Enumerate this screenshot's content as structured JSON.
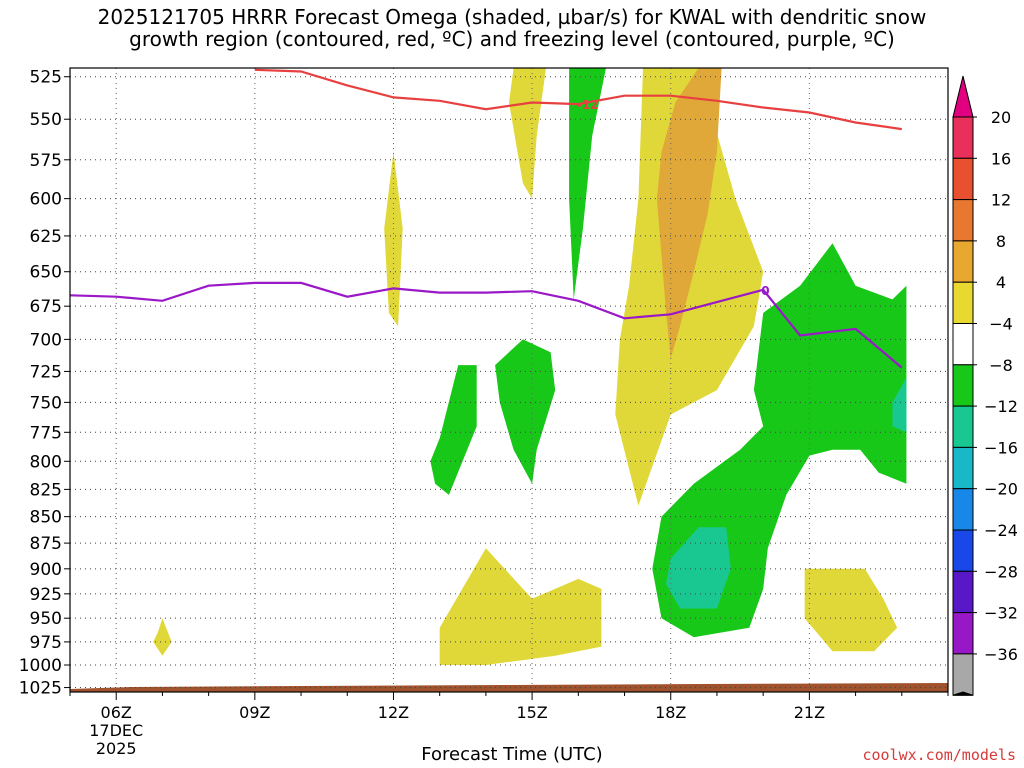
{
  "title_line1": "2025121705 HRRR Forecast Omega (shaded, µbar/s) for KWAL with dendritic snow",
  "title_line2": "growth region (contoured, red, ºC) and freezing level (contoured, purple, ºC)",
  "credit": "coolwx.com/models",
  "chart_data": {
    "type": "time-height",
    "xlabel": "Forecast Time (UTC)",
    "ylabel": "",
    "x_ticks": [
      {
        "hour": 6,
        "label": "06Z",
        "sub1": "17DEC",
        "sub2": "2025"
      },
      {
        "hour": 9,
        "label": "09Z"
      },
      {
        "hour": 12,
        "label": "12Z"
      },
      {
        "hour": 15,
        "label": "15Z"
      },
      {
        "hour": 18,
        "label": "18Z"
      },
      {
        "hour": 21,
        "label": "21Z"
      }
    ],
    "xlim": [
      5,
      24
    ],
    "y_ticks": [
      525,
      550,
      575,
      600,
      625,
      650,
      675,
      700,
      725,
      750,
      775,
      800,
      825,
      850,
      875,
      900,
      925,
      950,
      975,
      1000,
      1025
    ],
    "ylim_hpa": [
      520,
      1030
    ],
    "y_scale": "log-pressure",
    "grid": true,
    "colorbar": {
      "levels": [
        20,
        16,
        12,
        8,
        4,
        -4,
        -8,
        -12,
        -16,
        -20,
        -24,
        -28,
        -32,
        -36
      ],
      "colors": [
        "#e8305a",
        "#e85030",
        "#e87830",
        "#e8a830",
        "#e8d830",
        "#ffffff",
        "#18c818",
        "#18c890",
        "#18b8c8",
        "#1888e8",
        "#1848e8",
        "#5818c8",
        "#9818c8",
        "#a8a8a8"
      ],
      "top_cap": "#e00080",
      "bottom_cap": "#000000"
    },
    "dgz_contour": {
      "value_label": "-12",
      "color": "#e84040",
      "points": [
        [
          9,
          521
        ],
        [
          10,
          522
        ],
        [
          11,
          530
        ],
        [
          12,
          537
        ],
        [
          13,
          539
        ],
        [
          14,
          544
        ],
        [
          15,
          540
        ],
        [
          16,
          541
        ],
        [
          17,
          536
        ],
        [
          18,
          536
        ],
        [
          19,
          539
        ],
        [
          20,
          543
        ],
        [
          21,
          546
        ],
        [
          22,
          552
        ],
        [
          23,
          556
        ]
      ]
    },
    "freezing_level": {
      "value_label": "0",
      "color": "#9a18c8",
      "points": [
        [
          5,
          667
        ],
        [
          6,
          668
        ],
        [
          7,
          671
        ],
        [
          8,
          660
        ],
        [
          9,
          658
        ],
        [
          10,
          658
        ],
        [
          11,
          668
        ],
        [
          12,
          662
        ],
        [
          13,
          665
        ],
        [
          14,
          665
        ],
        [
          15,
          664
        ],
        [
          16,
          671
        ],
        [
          17,
          684
        ],
        [
          18,
          681
        ],
        [
          19,
          672
        ],
        [
          20,
          663
        ],
        [
          20.8,
          697
        ],
        [
          22,
          692
        ],
        [
          23,
          722
        ]
      ]
    },
    "omega_regions": [
      {
        "level": 4,
        "color": "#e0d838",
        "points": [
          [
            14.6,
            520
          ],
          [
            15.3,
            520
          ],
          [
            15.1,
            560
          ],
          [
            15.0,
            600
          ],
          [
            14.8,
            590
          ],
          [
            14.5,
            540
          ]
        ]
      },
      {
        "level": 4,
        "color": "#e0d838",
        "points": [
          [
            11.8,
            620
          ],
          [
            12.0,
            570
          ],
          [
            12.2,
            620
          ],
          [
            12.1,
            690
          ],
          [
            11.9,
            680
          ]
        ]
      },
      {
        "level": 4,
        "color": "#e0d838",
        "points": [
          [
            17.4,
            520
          ],
          [
            18.6,
            520
          ],
          [
            19.4,
            600
          ],
          [
            20.0,
            650
          ],
          [
            19.8,
            690
          ],
          [
            19.0,
            740
          ],
          [
            18.0,
            760
          ],
          [
            17.3,
            840
          ],
          [
            16.8,
            760
          ],
          [
            16.9,
            700
          ],
          [
            17.1,
            660
          ],
          [
            17.3,
            600
          ]
        ]
      },
      {
        "level": 12,
        "color": "#e0a838",
        "points": [
          [
            18.6,
            520
          ],
          [
            19.1,
            520
          ],
          [
            19.0,
            570
          ],
          [
            18.8,
            610
          ],
          [
            18.5,
            650
          ],
          [
            18.2,
            690
          ],
          [
            18.0,
            715
          ],
          [
            17.9,
            680
          ],
          [
            17.7,
            600
          ],
          [
            17.8,
            570
          ],
          [
            18.1,
            540
          ]
        ]
      },
      {
        "level": 4,
        "color": "#e0d838",
        "points": [
          [
            6.9,
            965
          ],
          [
            7.0,
            950
          ],
          [
            7.2,
            975
          ],
          [
            7.0,
            990
          ],
          [
            6.8,
            975
          ]
        ]
      },
      {
        "level": 4,
        "color": "#e0d838",
        "points": [
          [
            13.0,
            960
          ],
          [
            14.0,
            880
          ],
          [
            15.0,
            930
          ],
          [
            16.0,
            910
          ],
          [
            16.5,
            920
          ],
          [
            16.5,
            980
          ],
          [
            15.5,
            990
          ],
          [
            14.0,
            1000
          ],
          [
            13.0,
            1000
          ]
        ]
      },
      {
        "level": 4,
        "color": "#e0d838",
        "points": [
          [
            20.9,
            900
          ],
          [
            22.2,
            900
          ],
          [
            22.6,
            930
          ],
          [
            22.9,
            960
          ],
          [
            22.4,
            985
          ],
          [
            21.5,
            985
          ],
          [
            20.9,
            950
          ]
        ]
      },
      {
        "level": -4,
        "color": "#18c818",
        "points": [
          [
            13.0,
            780
          ],
          [
            13.4,
            720
          ],
          [
            13.8,
            720
          ],
          [
            13.8,
            770
          ],
          [
            13.2,
            830
          ],
          [
            12.9,
            820
          ],
          [
            12.8,
            800
          ]
        ]
      },
      {
        "level": -4,
        "color": "#18c818",
        "points": [
          [
            14.2,
            720
          ],
          [
            14.8,
            700
          ],
          [
            15.4,
            710
          ],
          [
            15.5,
            740
          ],
          [
            15.1,
            790
          ],
          [
            15.0,
            820
          ],
          [
            14.6,
            790
          ],
          [
            14.3,
            750
          ]
        ]
      },
      {
        "level": -4,
        "color": "#18c818",
        "points": [
          [
            15.8,
            520
          ],
          [
            16.6,
            520
          ],
          [
            16.3,
            560
          ],
          [
            16.1,
            620
          ],
          [
            15.9,
            670
          ],
          [
            15.8,
            600
          ],
          [
            15.8,
            560
          ]
        ]
      },
      {
        "level": -4,
        "color": "#18c818",
        "points": [
          [
            20.0,
            680
          ],
          [
            20.8,
            660
          ],
          [
            21.5,
            630
          ],
          [
            22.0,
            660
          ],
          [
            22.8,
            670
          ],
          [
            23.1,
            660
          ],
          [
            23.1,
            820
          ],
          [
            22.5,
            810
          ],
          [
            22.1,
            790
          ],
          [
            21.5,
            790
          ],
          [
            21.0,
            795
          ],
          [
            20.5,
            830
          ],
          [
            20.1,
            880
          ],
          [
            20.0,
            920
          ],
          [
            19.7,
            960
          ],
          [
            18.5,
            970
          ],
          [
            17.8,
            950
          ],
          [
            17.6,
            900
          ],
          [
            17.8,
            850
          ],
          [
            18.5,
            820
          ],
          [
            19.5,
            790
          ],
          [
            20.0,
            770
          ],
          [
            19.8,
            740
          ]
        ]
      },
      {
        "level": -8,
        "color": "#18c890",
        "points": [
          [
            18.0,
            890
          ],
          [
            18.6,
            860
          ],
          [
            19.2,
            860
          ],
          [
            19.3,
            900
          ],
          [
            19.0,
            940
          ],
          [
            18.2,
            940
          ],
          [
            17.9,
            915
          ]
        ]
      },
      {
        "level": -8,
        "color": "#18c890",
        "points": [
          [
            22.8,
            750
          ],
          [
            23.1,
            730
          ],
          [
            23.1,
            775
          ],
          [
            22.8,
            770
          ]
        ]
      }
    ]
  }
}
